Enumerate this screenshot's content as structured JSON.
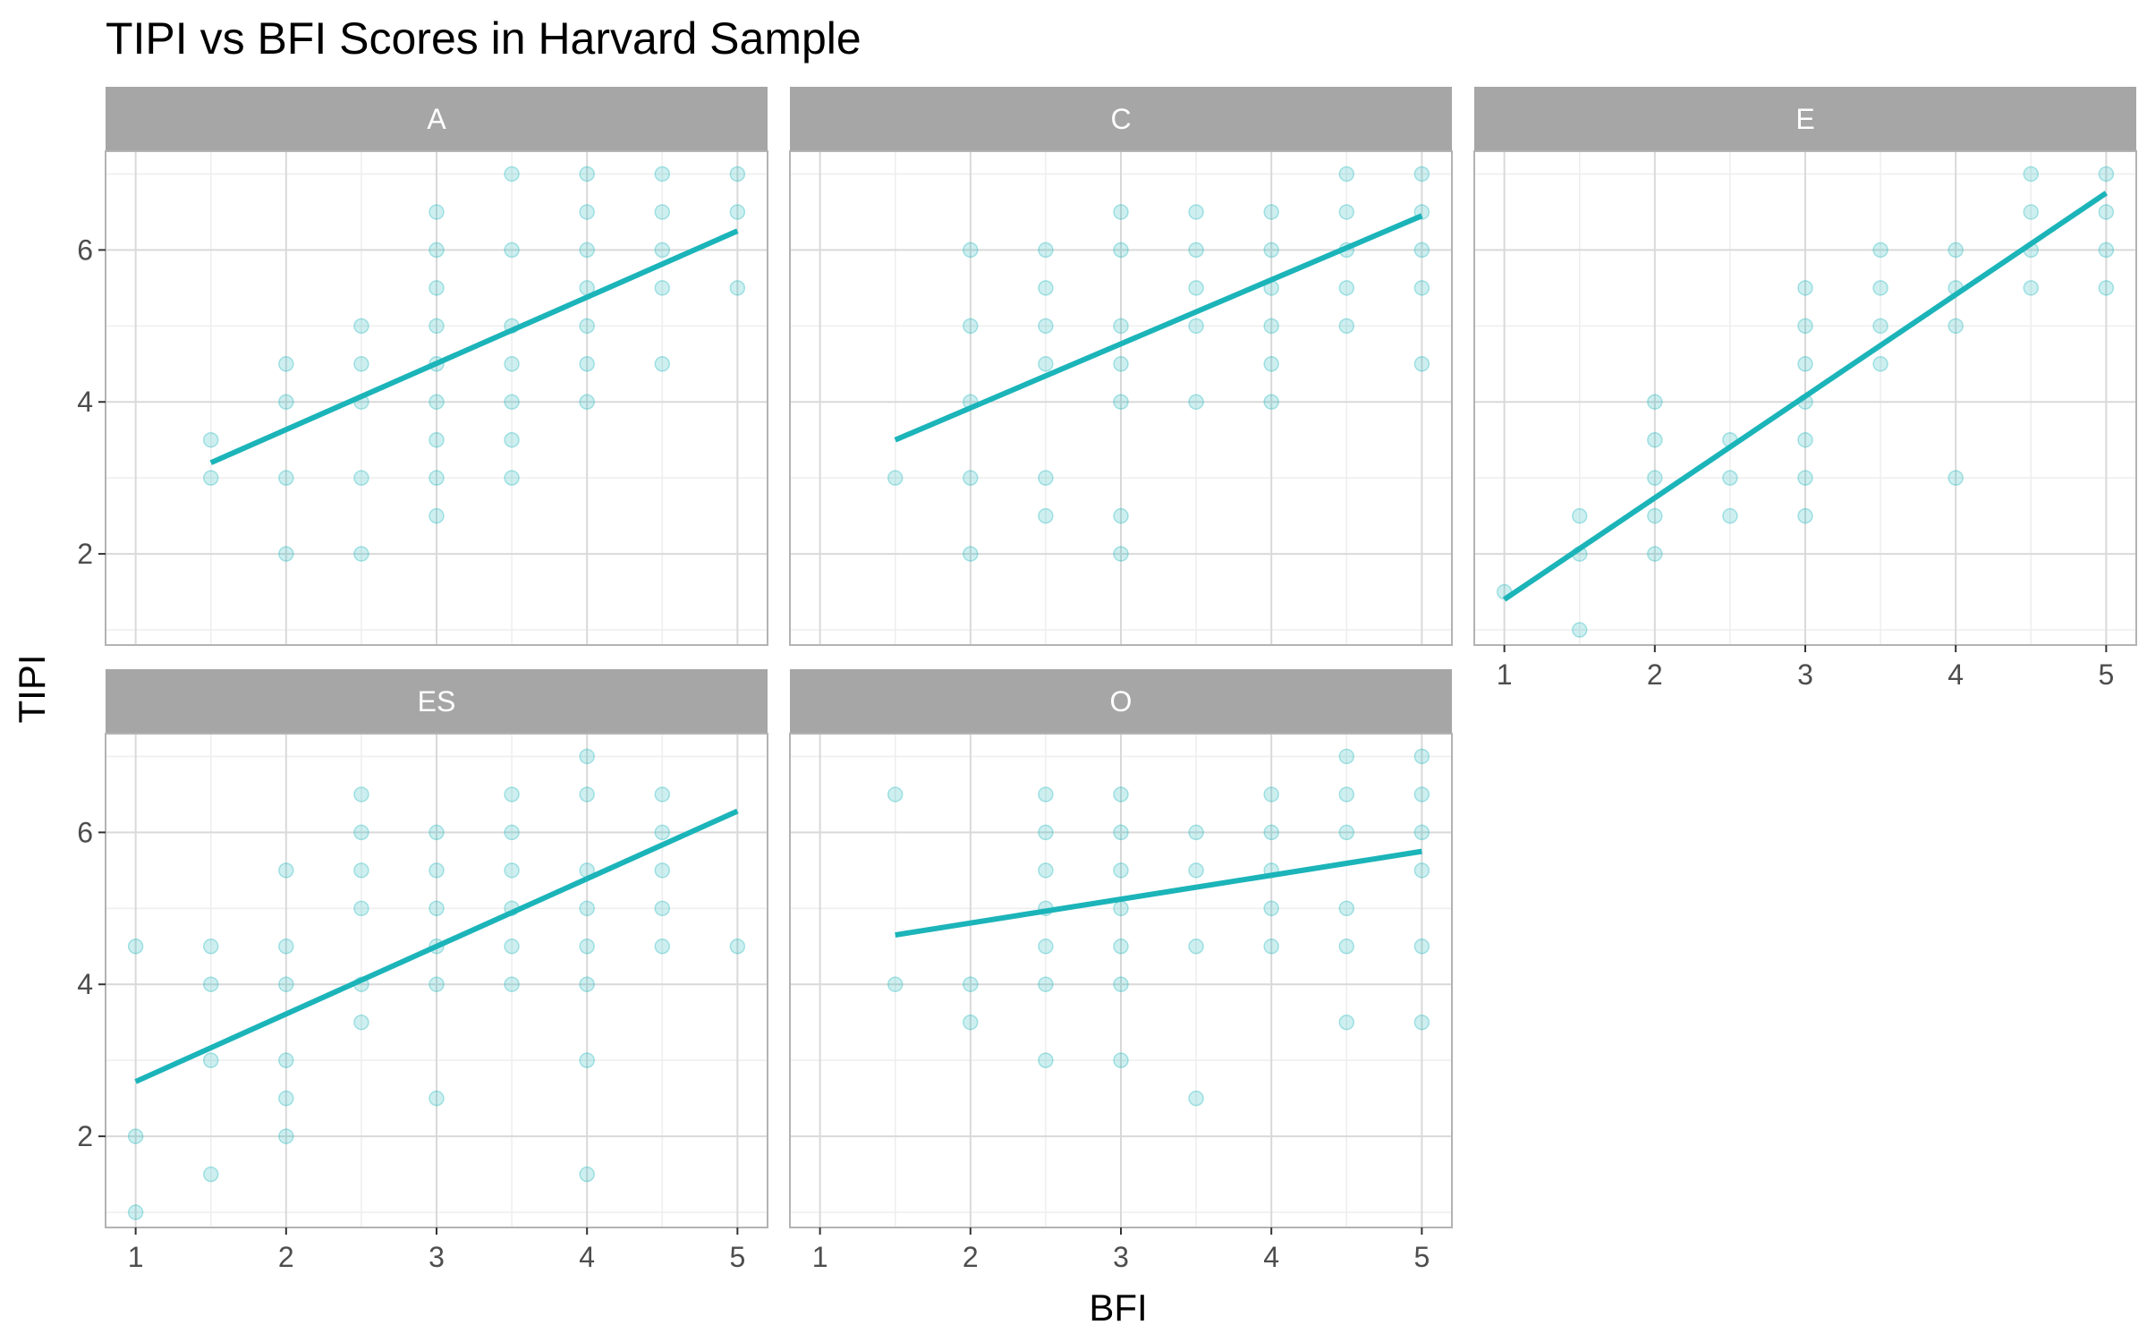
{
  "chart_data": {
    "type": "scatter",
    "title": "TIPI vs BFI Scores in Harvard Sample",
    "xlabel": "BFI",
    "ylabel": "TIPI",
    "xlim": [
      0.8,
      5.2
    ],
    "ylim": [
      0.8,
      7.3
    ],
    "x_ticks": [
      1,
      2,
      3,
      4,
      5
    ],
    "y_ticks": [
      2,
      4,
      6
    ],
    "grid": true,
    "colors": {
      "point": "#1bb4b9",
      "line": "#1bb4b9",
      "strip": "#a6a6a6",
      "grid_major": "#d9d9d9",
      "grid_minor": "#eeeeee",
      "border": "#b3b3b3"
    },
    "panels": [
      {
        "name": "A",
        "points": [
          [
            1.5,
            3.5
          ],
          [
            1.5,
            3
          ],
          [
            2,
            4.5
          ],
          [
            2,
            4
          ],
          [
            2,
            3
          ],
          [
            2,
            2
          ],
          [
            2.5,
            5
          ],
          [
            2.5,
            4.5
          ],
          [
            2.5,
            4
          ],
          [
            2.5,
            3
          ],
          [
            2.5,
            2
          ],
          [
            3,
            6.5
          ],
          [
            3,
            6
          ],
          [
            3,
            5.5
          ],
          [
            3,
            5
          ],
          [
            3,
            4.5
          ],
          [
            3,
            4
          ],
          [
            3,
            3.5
          ],
          [
            3,
            3
          ],
          [
            3,
            2.5
          ],
          [
            3.5,
            7
          ],
          [
            3.5,
            6
          ],
          [
            3.5,
            5
          ],
          [
            3.5,
            4.5
          ],
          [
            3.5,
            4
          ],
          [
            3.5,
            3.5
          ],
          [
            3.5,
            3
          ],
          [
            4,
            7
          ],
          [
            4,
            6.5
          ],
          [
            4,
            6
          ],
          [
            4,
            5.5
          ],
          [
            4,
            5
          ],
          [
            4,
            4.5
          ],
          [
            4,
            4
          ],
          [
            4.5,
            7
          ],
          [
            4.5,
            6.5
          ],
          [
            4.5,
            6
          ],
          [
            4.5,
            5.5
          ],
          [
            4.5,
            4.5
          ],
          [
            5,
            7
          ],
          [
            5,
            6.5
          ],
          [
            5,
            5.5
          ]
        ],
        "fit": [
          [
            1.5,
            3.2
          ],
          [
            5,
            6.25
          ]
        ]
      },
      {
        "name": "C",
        "points": [
          [
            1.5,
            3
          ],
          [
            2,
            6
          ],
          [
            2,
            5
          ],
          [
            2,
            4
          ],
          [
            2,
            3
          ],
          [
            2,
            2
          ],
          [
            2.5,
            6
          ],
          [
            2.5,
            5.5
          ],
          [
            2.5,
            5
          ],
          [
            2.5,
            4.5
          ],
          [
            2.5,
            3
          ],
          [
            2.5,
            2.5
          ],
          [
            3,
            6.5
          ],
          [
            3,
            6
          ],
          [
            3,
            5
          ],
          [
            3,
            4.5
          ],
          [
            3,
            4
          ],
          [
            3,
            2.5
          ],
          [
            3,
            2
          ],
          [
            3.5,
            6.5
          ],
          [
            3.5,
            6
          ],
          [
            3.5,
            5.5
          ],
          [
            3.5,
            5
          ],
          [
            3.5,
            4
          ],
          [
            4,
            6.5
          ],
          [
            4,
            6
          ],
          [
            4,
            5.5
          ],
          [
            4,
            5
          ],
          [
            4,
            4.5
          ],
          [
            4,
            4
          ],
          [
            4.5,
            7
          ],
          [
            4.5,
            6.5
          ],
          [
            4.5,
            6
          ],
          [
            4.5,
            5.5
          ],
          [
            4.5,
            5
          ],
          [
            5,
            7
          ],
          [
            5,
            6.5
          ],
          [
            5,
            6
          ],
          [
            5,
            5.5
          ],
          [
            5,
            4.5
          ]
        ],
        "fit": [
          [
            1.5,
            3.5
          ],
          [
            5,
            6.45
          ]
        ]
      },
      {
        "name": "E",
        "points": [
          [
            1,
            1.5
          ],
          [
            1.5,
            2.5
          ],
          [
            1.5,
            2
          ],
          [
            1.5,
            1
          ],
          [
            2,
            4
          ],
          [
            2,
            3.5
          ],
          [
            2,
            3
          ],
          [
            2,
            2.5
          ],
          [
            2,
            2
          ],
          [
            2.5,
            3.5
          ],
          [
            2.5,
            3
          ],
          [
            2.5,
            2.5
          ],
          [
            3,
            5.5
          ],
          [
            3,
            5
          ],
          [
            3,
            4.5
          ],
          [
            3,
            4
          ],
          [
            3,
            3.5
          ],
          [
            3,
            3
          ],
          [
            3,
            2.5
          ],
          [
            3.5,
            6
          ],
          [
            3.5,
            5.5
          ],
          [
            3.5,
            5
          ],
          [
            3.5,
            4.5
          ],
          [
            4,
            6
          ],
          [
            4,
            5.5
          ],
          [
            4,
            5
          ],
          [
            4,
            3
          ],
          [
            4.5,
            7
          ],
          [
            4.5,
            6.5
          ],
          [
            4.5,
            6
          ],
          [
            4.5,
            5.5
          ],
          [
            5,
            7
          ],
          [
            5,
            6.5
          ],
          [
            5,
            6
          ],
          [
            5,
            5.5
          ]
        ],
        "fit": [
          [
            1,
            1.4
          ],
          [
            5,
            6.75
          ]
        ]
      },
      {
        "name": "ES",
        "points": [
          [
            1,
            4.5
          ],
          [
            1,
            2
          ],
          [
            1,
            1
          ],
          [
            1.5,
            4.5
          ],
          [
            1.5,
            4
          ],
          [
            1.5,
            3
          ],
          [
            1.5,
            1.5
          ],
          [
            2,
            5.5
          ],
          [
            2,
            4.5
          ],
          [
            2,
            4
          ],
          [
            2,
            3
          ],
          [
            2,
            2.5
          ],
          [
            2,
            2
          ],
          [
            2.5,
            6.5
          ],
          [
            2.5,
            6
          ],
          [
            2.5,
            5.5
          ],
          [
            2.5,
            5
          ],
          [
            2.5,
            4
          ],
          [
            2.5,
            3.5
          ],
          [
            3,
            6
          ],
          [
            3,
            5.5
          ],
          [
            3,
            5
          ],
          [
            3,
            4.5
          ],
          [
            3,
            4
          ],
          [
            3,
            2.5
          ],
          [
            3.5,
            6.5
          ],
          [
            3.5,
            6
          ],
          [
            3.5,
            5.5
          ],
          [
            3.5,
            5
          ],
          [
            3.5,
            4.5
          ],
          [
            3.5,
            4
          ],
          [
            4,
            7
          ],
          [
            4,
            6.5
          ],
          [
            4,
            5.5
          ],
          [
            4,
            5
          ],
          [
            4,
            4.5
          ],
          [
            4,
            4
          ],
          [
            4,
            3
          ],
          [
            4,
            1.5
          ],
          [
            4.5,
            6.5
          ],
          [
            4.5,
            6
          ],
          [
            4.5,
            5.5
          ],
          [
            4.5,
            5
          ],
          [
            4.5,
            4.5
          ],
          [
            5,
            4.5
          ]
        ],
        "fit": [
          [
            1,
            2.72
          ],
          [
            5,
            6.28
          ]
        ]
      },
      {
        "name": "O",
        "points": [
          [
            1.5,
            6.5
          ],
          [
            1.5,
            4
          ],
          [
            2,
            4
          ],
          [
            2,
            3.5
          ],
          [
            2.5,
            6.5
          ],
          [
            2.5,
            6
          ],
          [
            2.5,
            5.5
          ],
          [
            2.5,
            5
          ],
          [
            2.5,
            4.5
          ],
          [
            2.5,
            4
          ],
          [
            2.5,
            3
          ],
          [
            3,
            6.5
          ],
          [
            3,
            6
          ],
          [
            3,
            5.5
          ],
          [
            3,
            5
          ],
          [
            3,
            4.5
          ],
          [
            3,
            4
          ],
          [
            3,
            3
          ],
          [
            3.5,
            6
          ],
          [
            3.5,
            5.5
          ],
          [
            3.5,
            4.5
          ],
          [
            3.5,
            2.5
          ],
          [
            4,
            6.5
          ],
          [
            4,
            6
          ],
          [
            4,
            5.5
          ],
          [
            4,
            5
          ],
          [
            4,
            4.5
          ],
          [
            4.5,
            7
          ],
          [
            4.5,
            6.5
          ],
          [
            4.5,
            6
          ],
          [
            4.5,
            5
          ],
          [
            4.5,
            4.5
          ],
          [
            4.5,
            3.5
          ],
          [
            5,
            7
          ],
          [
            5,
            6.5
          ],
          [
            5,
            6
          ],
          [
            5,
            5.5
          ],
          [
            5,
            4.5
          ],
          [
            5,
            3.5
          ]
        ],
        "fit": [
          [
            1.5,
            4.65
          ],
          [
            5,
            5.75
          ]
        ]
      }
    ]
  }
}
